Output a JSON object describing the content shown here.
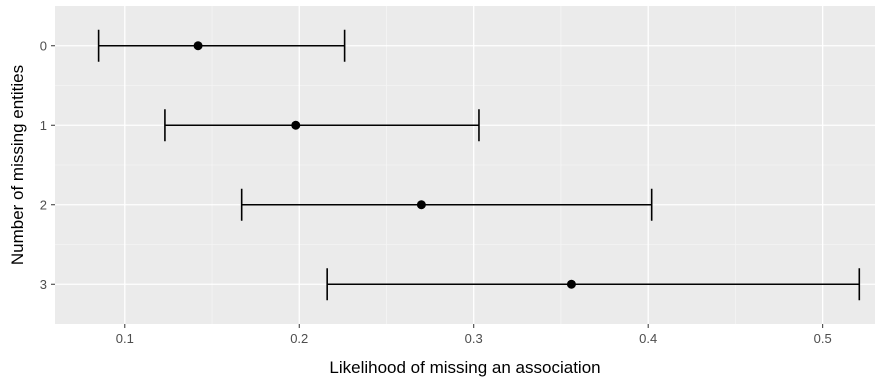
{
  "chart_data": {
    "type": "scatter",
    "orientation": "horizontal",
    "xlabel": "Likelihood of missing an association",
    "ylabel": "Number of missing entities",
    "xlim": [
      0.06,
      0.53
    ],
    "x_ticks": [
      "0.1",
      "0.2",
      "0.3",
      "0.4",
      "0.5"
    ],
    "categories": [
      "0",
      "1",
      "2",
      "3"
    ],
    "points": [
      {
        "category": "0",
        "estimate": 0.142,
        "lower": 0.085,
        "upper": 0.226
      },
      {
        "category": "1",
        "estimate": 0.198,
        "lower": 0.123,
        "upper": 0.303
      },
      {
        "category": "2",
        "estimate": 0.27,
        "lower": 0.167,
        "upper": 0.402
      },
      {
        "category": "3",
        "estimate": 0.356,
        "lower": 0.216,
        "upper": 0.521
      }
    ],
    "grid": true,
    "legend": "none",
    "colors": {
      "panel_background": "#ebebeb",
      "grid_major": "#ffffff",
      "grid_minor": "#f5f5f5",
      "marks": "#000000",
      "tick_text": "#4d4d4d"
    }
  }
}
